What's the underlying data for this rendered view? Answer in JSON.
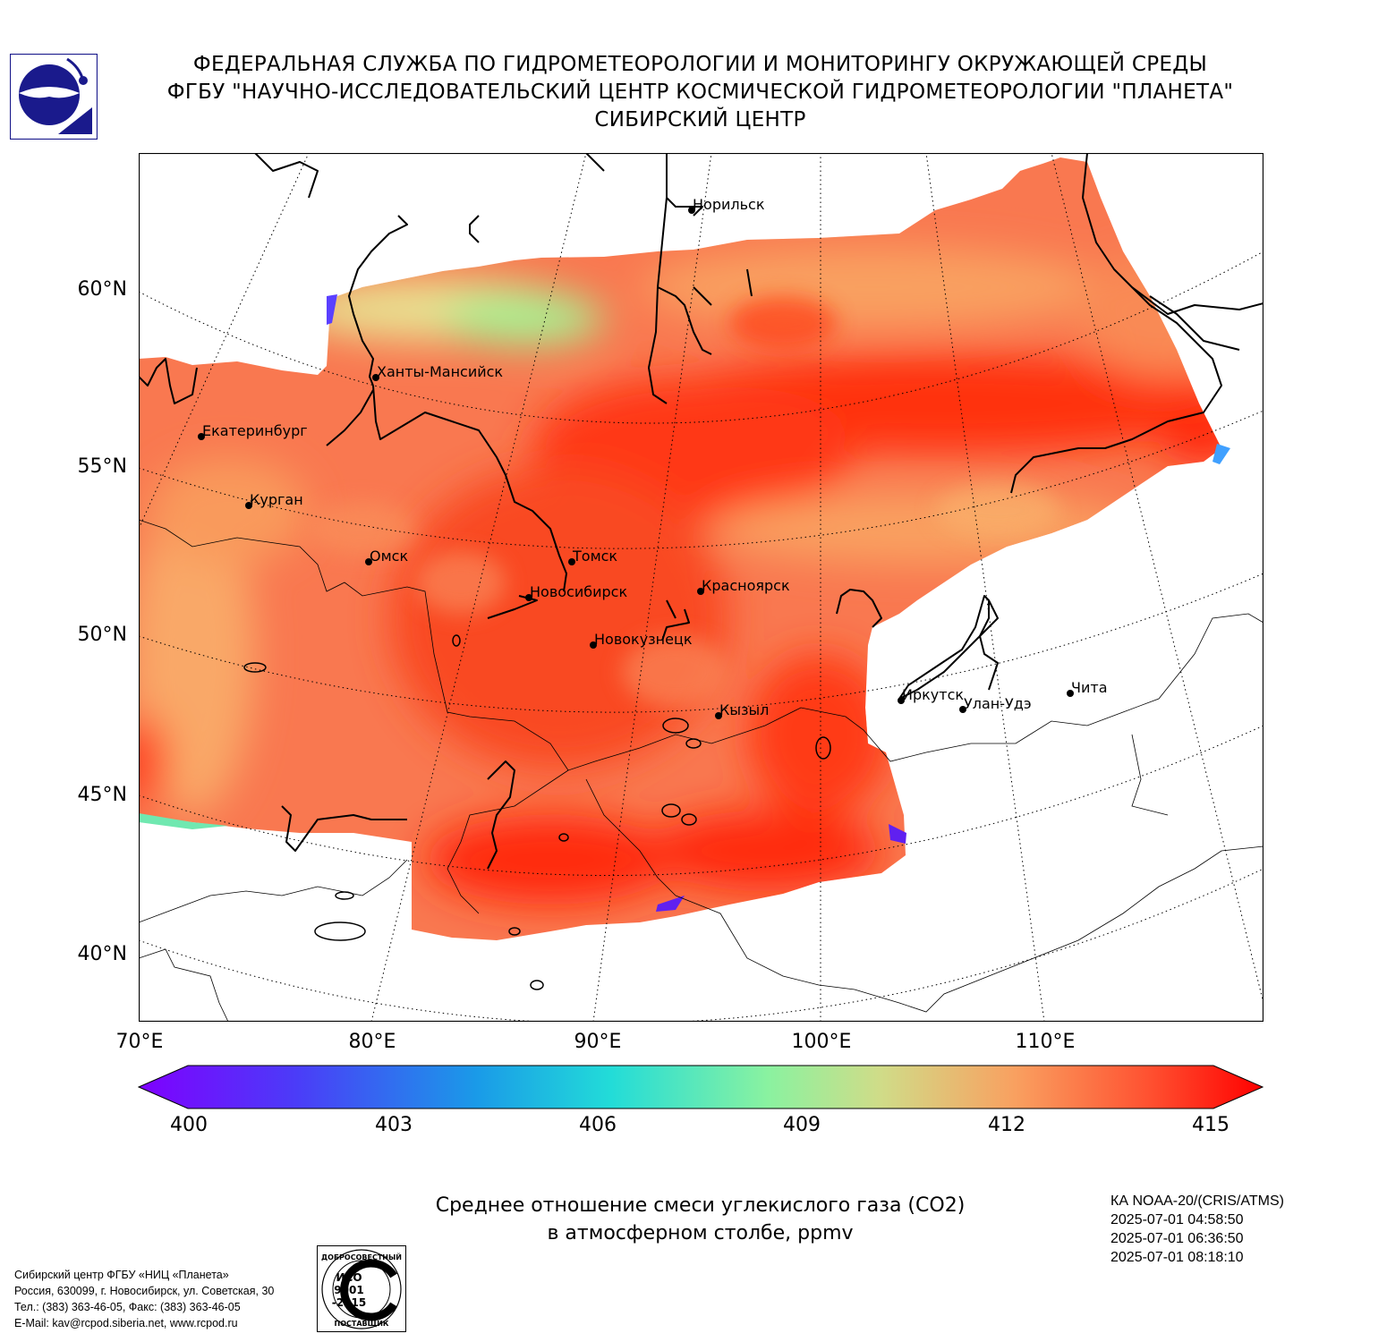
{
  "header": {
    "line1": "ФЕДЕРАЛЬНАЯ СЛУЖБА ПО ГИДРОМЕТЕОРОЛОГИИ И МОНИТОРИНГУ ОКРУЖАЮЩЕЙ СРЕДЫ",
    "line2": "ФГБУ \"НАУЧНО-ИССЛЕДОВАТЕЛЬСКИЙ ЦЕНТР КОСМИЧЕСКОЙ ГИДРОМЕТЕОРОЛОГИИ \"ПЛАНЕТА\"",
    "line3": "СИБИРСКИЙ ЦЕНТР"
  },
  "map": {
    "lat_labels": [
      "60°N",
      "55°N",
      "50°N",
      "45°N",
      "40°N"
    ],
    "lon_labels": [
      "70°E",
      "80°E",
      "90°E",
      "100°E",
      "110°E"
    ],
    "cities": [
      {
        "name": "Норильск"
      },
      {
        "name": "Ханты-Мансийск"
      },
      {
        "name": "Екатеринбург"
      },
      {
        "name": "Курган"
      },
      {
        "name": "Омск"
      },
      {
        "name": "Томск"
      },
      {
        "name": "Новосибирск"
      },
      {
        "name": "Красноярск"
      },
      {
        "name": "Новокузнецк"
      },
      {
        "name": "Кызыл"
      },
      {
        "name": "Иркутск"
      },
      {
        "name": "Улан-Удэ"
      },
      {
        "name": "Чита"
      }
    ]
  },
  "colorbar": {
    "ticks": [
      "400",
      "403",
      "406",
      "409",
      "412",
      "415"
    ],
    "min": 400,
    "max": 415
  },
  "caption": {
    "line1": "Среднее отношение смеси углекислого газа (CO2)",
    "line2": "в атмосферном столбе, ppmv"
  },
  "satellite": {
    "name": "КА NOAA-20/(CRIS/ATMS)",
    "times": [
      "2025-07-01 04:58:50",
      "2025-07-01 06:36:50",
      "2025-07-01 08:18:10"
    ]
  },
  "footer": {
    "line1": "Сибирский центр ФГБУ «НИЦ «Планета»",
    "line2": "Россия, 630099, г. Новосибирск, ул. Советская, 30",
    "line3": "Тел.: (383) 363-46-05, Факс: (383) 363-46-05",
    "line4": "E-Mail: kav@rcpod.siberia.net, www.rcpod.ru"
  },
  "iso_badge": {
    "top_text": "ДОБРОСОВЕСТНЫЙ",
    "mid1": "ИСО",
    "mid2": "9001",
    "mid3": "-2015",
    "bottom_text": "ПОСТАВЩИК"
  },
  "colors": {
    "logo_blue": "#1a1a8c",
    "data_red": "#ff2a10",
    "data_orange": "#f96a3c",
    "data_light": "#f9b06a",
    "data_green": "#a8f090"
  }
}
